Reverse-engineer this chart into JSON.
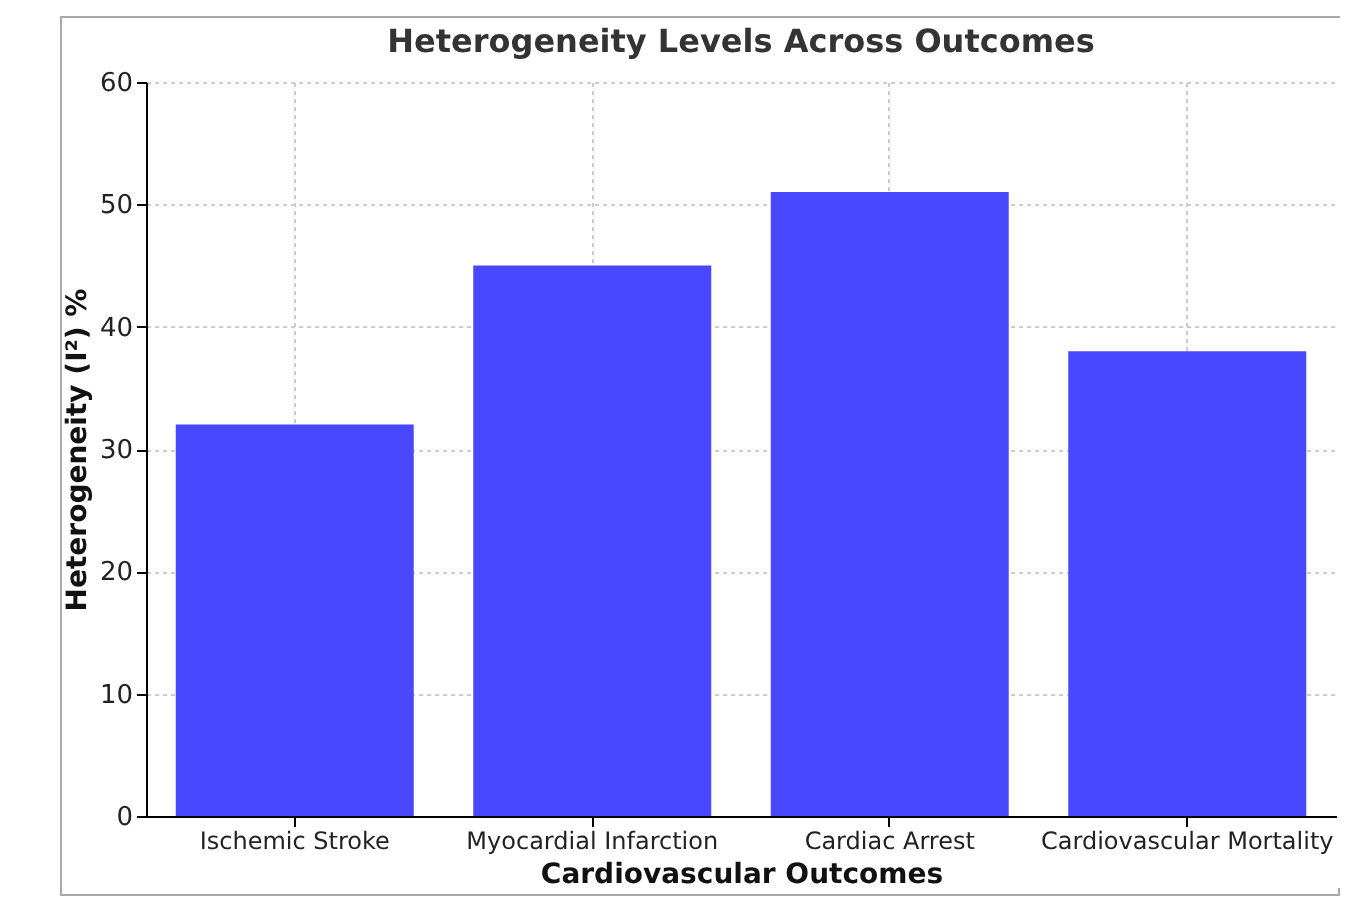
{
  "chart_data": {
    "type": "bar",
    "title": "Heterogeneity Levels Across Outcomes",
    "xlabel": "Cardiovascular Outcomes",
    "ylabel": "Heterogeneity (I²) %",
    "categories": [
      "Ischemic Stroke",
      "Myocardial Infarction",
      "Cardiac Arrest",
      "Cardiovascular Mortality"
    ],
    "values": [
      32,
      45,
      51,
      38
    ],
    "color": "#4848ff",
    "ylim": [
      0,
      60
    ],
    "yticks": [
      0,
      10,
      20,
      30,
      40,
      50,
      60
    ],
    "grid": true
  }
}
